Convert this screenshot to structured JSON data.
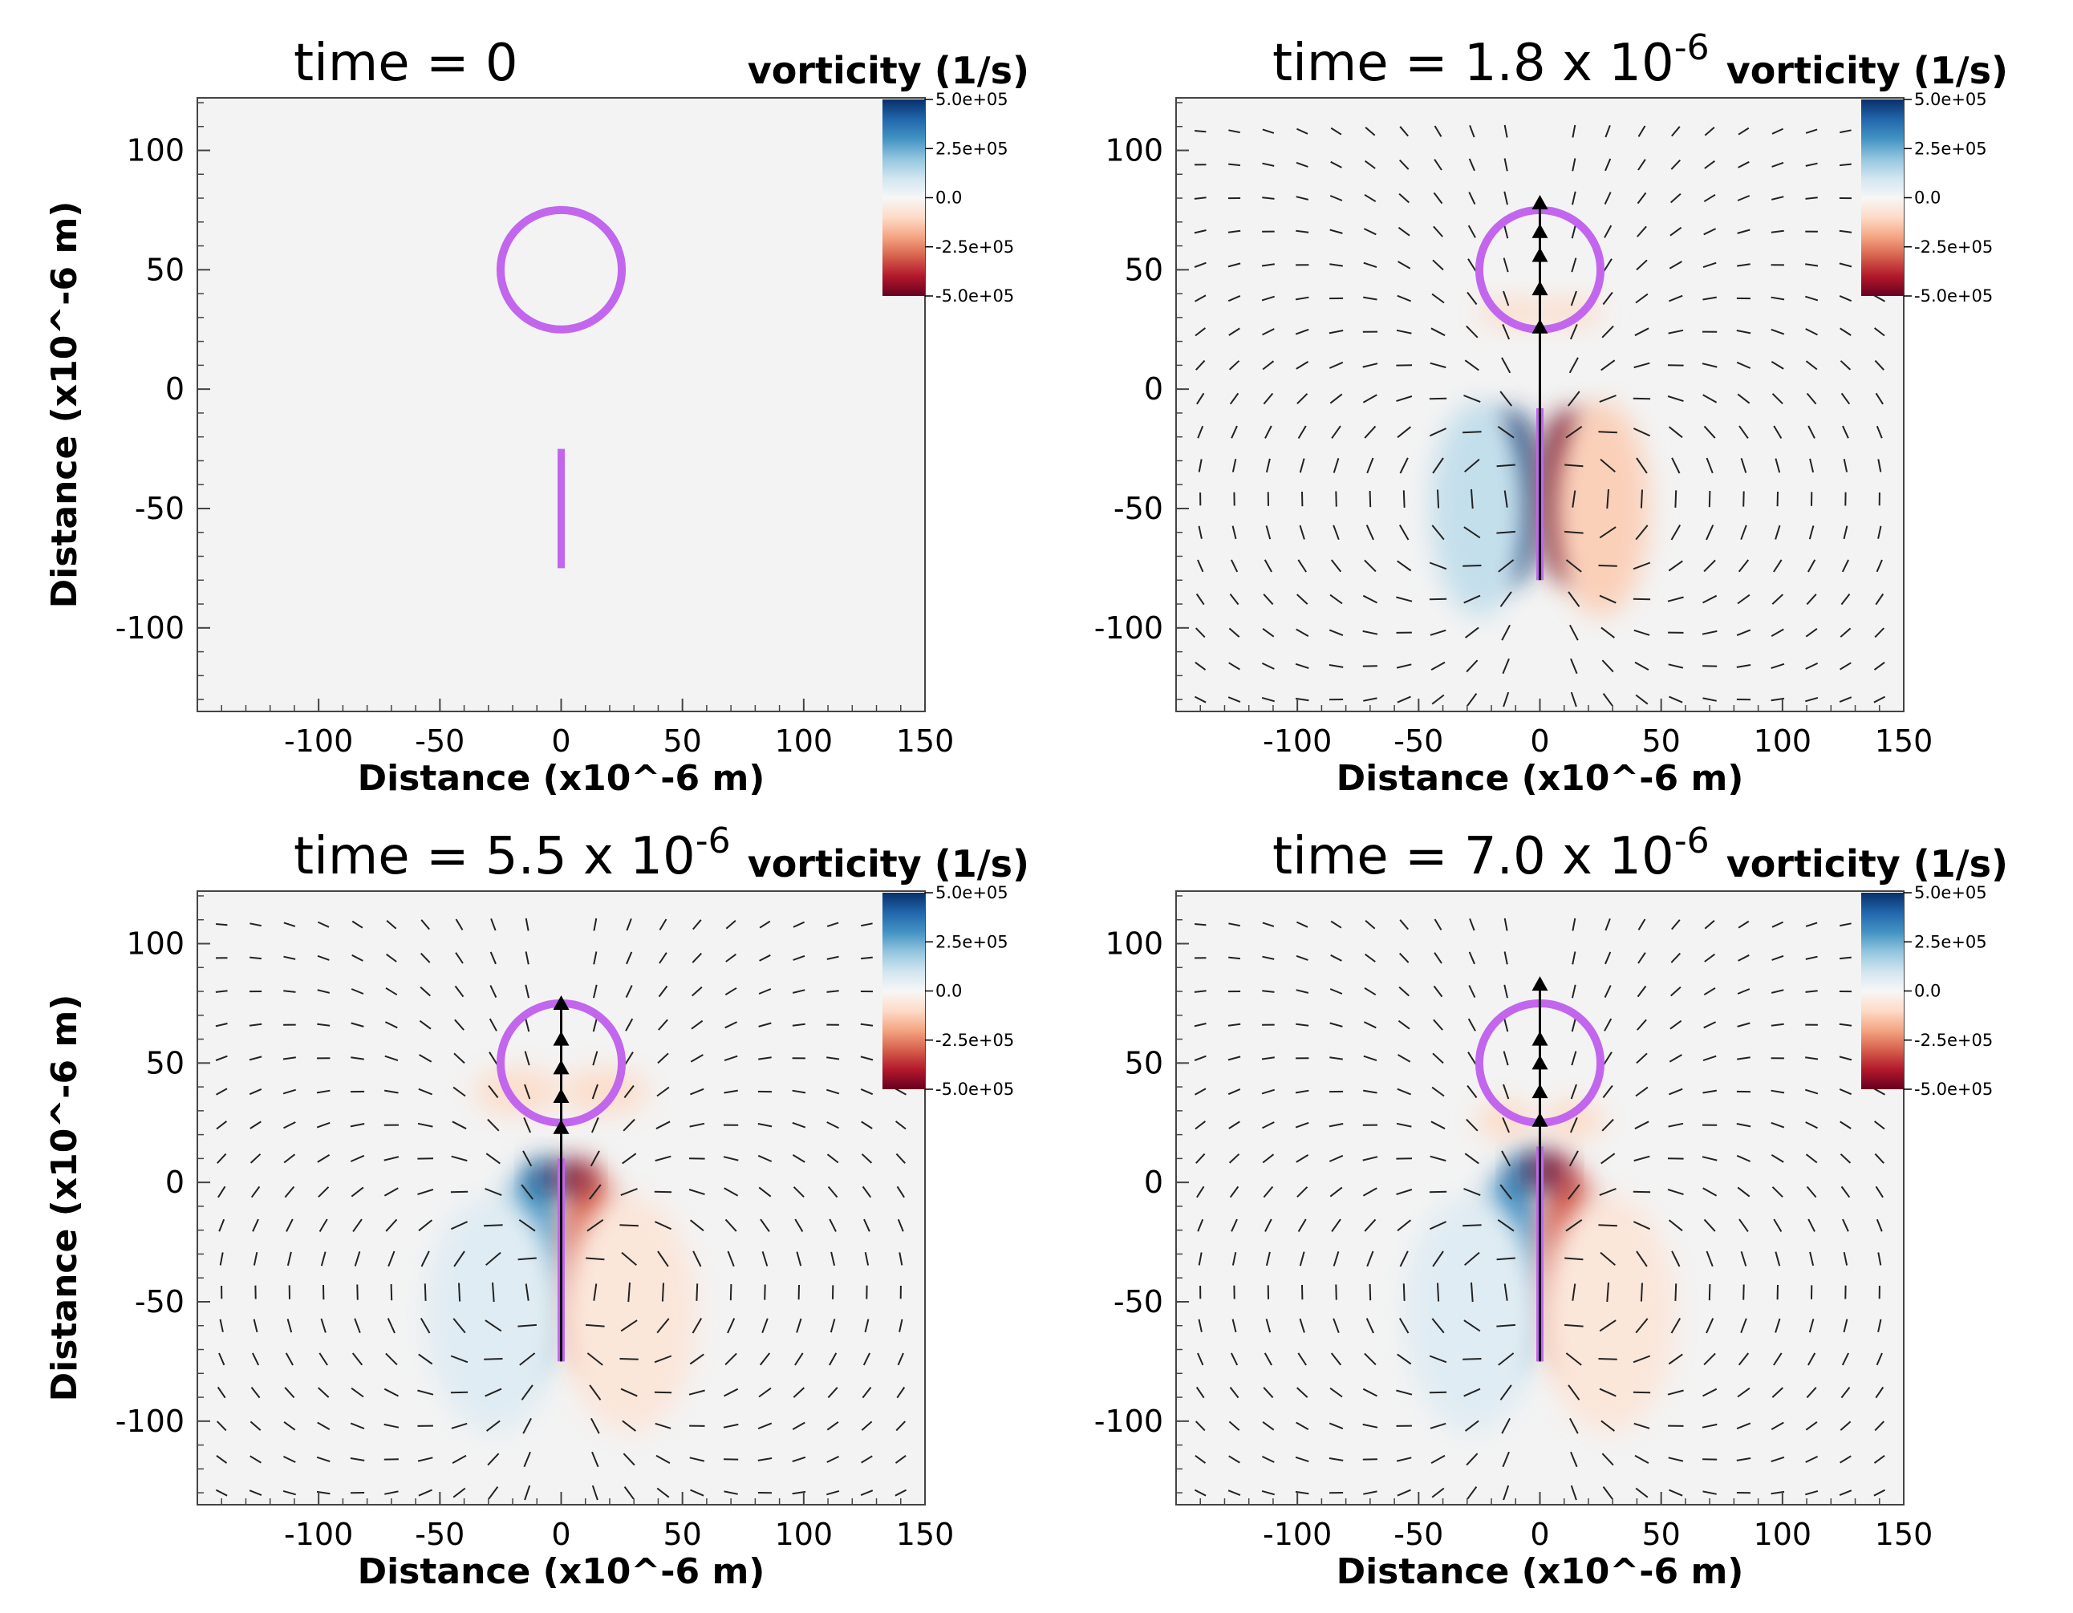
{
  "figure": {
    "colorbar_stops": [
      "#08306b",
      "#2166ac",
      "#4393c3",
      "#92c5de",
      "#d1e5f0",
      "#f7f7f7",
      "#fddbc7",
      "#f4a582",
      "#d6604d",
      "#b2182b",
      "#67001f"
    ],
    "bubble_color": "#c266ee",
    "background_color": "#f3f3f3"
  },
  "chart_data": [
    {
      "type": "heatmap",
      "title": "time = 0",
      "title_exponent": "",
      "colorbar_title": "vorticity (1/s)",
      "colorbar_ticks": [
        "5.0e+05",
        "2.5e+05",
        "0.0",
        "-2.5e+05",
        "-5.0e+05"
      ],
      "colorbar_range": [
        -500000,
        500000
      ],
      "xlabel": "Distance (x10^-6 m)",
      "ylabel": "Distance (x10^-6 m)",
      "xlim": [
        -150,
        150
      ],
      "ylim": [
        -135,
        122
      ],
      "x_ticks": [
        -100,
        -50,
        0,
        50,
        100,
        150
      ],
      "y_ticks": [
        100,
        50,
        0,
        -50,
        -100
      ],
      "x_tick_labels": [
        "-100",
        "-50",
        "0",
        "50",
        "100",
        "150"
      ],
      "y_tick_labels": [
        "100",
        "50",
        "0",
        "-50",
        "-100"
      ],
      "bubble": {
        "center": [
          0,
          50
        ],
        "radius": 25
      },
      "needle": {
        "x": 0,
        "y_top": -25,
        "y_bottom": -75
      },
      "vorticity_lobes": [],
      "velocity_field": false,
      "central_arrow": null
    },
    {
      "type": "heatmap",
      "title": "time = 1.8 x 10",
      "title_exponent": "-6",
      "colorbar_title": "vorticity (1/s)",
      "colorbar_ticks": [
        "5.0e+05",
        "2.5e+05",
        "0.0",
        "-2.5e+05",
        "-5.0e+05"
      ],
      "colorbar_range": [
        -500000,
        500000
      ],
      "xlabel": "Distance (x10^-6 m)",
      "ylabel": "Distance (x10^-6 m)",
      "xlim": [
        -150,
        150
      ],
      "ylim": [
        -135,
        122
      ],
      "x_ticks": [
        -100,
        -50,
        0,
        50,
        100,
        150
      ],
      "y_ticks": [
        100,
        50,
        0,
        -50,
        -100
      ],
      "x_tick_labels": [
        "-100",
        "-50",
        "0",
        "50",
        "100",
        "150"
      ],
      "y_tick_labels": [
        "100",
        "50",
        "0",
        "-50",
        "-100"
      ],
      "bubble": {
        "center": [
          0,
          50
        ],
        "radius": 25
      },
      "needle": {
        "x": 0,
        "y_top": -8,
        "y_bottom": -80
      },
      "vorticity_lobes": [
        {
          "cx": -12,
          "cy": -45,
          "rx": 12,
          "ry": 36,
          "value": 500000
        },
        {
          "cx": 12,
          "cy": -45,
          "rx": 12,
          "ry": 36,
          "value": -500000
        },
        {
          "cx": -25,
          "cy": -50,
          "rx": 20,
          "ry": 45,
          "value": 120000
        },
        {
          "cx": 25,
          "cy": -50,
          "rx": 20,
          "ry": 45,
          "value": -120000
        },
        {
          "cx": -12,
          "cy": 32,
          "rx": 14,
          "ry": 6,
          "value": -90000
        },
        {
          "cx": 12,
          "cy": 32,
          "rx": 14,
          "ry": 6,
          "value": -90000
        }
      ],
      "velocity_field": true,
      "central_arrow": {
        "x": 0,
        "y_from": -80,
        "y_to": 80,
        "heads_y": [
          28,
          44,
          58,
          68,
          80
        ]
      }
    },
    {
      "type": "heatmap",
      "title": "time = 5.5 x 10",
      "title_exponent": "-6",
      "colorbar_title": "vorticity (1/s)",
      "colorbar_ticks": [
        "5.0e+05",
        "2.5e+05",
        "0.0",
        "-2.5e+05",
        "-5.0e+05"
      ],
      "colorbar_range": [
        -500000,
        500000
      ],
      "xlabel": "Distance (x10^-6 m)",
      "ylabel": "Distance (x10^-6 m)",
      "xlim": [
        -150,
        150
      ],
      "ylim": [
        -135,
        122
      ],
      "x_ticks": [
        -100,
        -50,
        0,
        50,
        100,
        150
      ],
      "y_ticks": [
        100,
        50,
        0,
        -50,
        -100
      ],
      "x_tick_labels": [
        "-100",
        "-50",
        "0",
        "50",
        "100",
        "150"
      ],
      "y_tick_labels": [
        "100",
        "50",
        "0",
        "-50",
        "-100"
      ],
      "bubble": {
        "center": [
          0,
          50
        ],
        "radius": 25
      },
      "needle": {
        "x": 0,
        "y_top": 10,
        "y_bottom": -75
      },
      "vorticity_lobes": [
        {
          "cx": -12,
          "cy": -35,
          "rx": 12,
          "ry": 42,
          "value": 300000
        },
        {
          "cx": 12,
          "cy": -35,
          "rx": 12,
          "ry": 42,
          "value": -300000
        },
        {
          "cx": -6,
          "cy": 2,
          "rx": 6,
          "ry": 8,
          "value": 480000
        },
        {
          "cx": 6,
          "cy": 2,
          "rx": 6,
          "ry": 8,
          "value": -480000
        },
        {
          "cx": -20,
          "cy": -60,
          "rx": 14,
          "ry": 24,
          "value": 180000
        },
        {
          "cx": 22,
          "cy": -60,
          "rx": 14,
          "ry": 24,
          "value": -180000
        },
        {
          "cx": -28,
          "cy": -55,
          "rx": 28,
          "ry": 50,
          "value": 60000
        },
        {
          "cx": 28,
          "cy": -55,
          "rx": 28,
          "ry": 50,
          "value": -60000
        },
        {
          "cx": -18,
          "cy": 38,
          "rx": 18,
          "ry": 10,
          "value": -90000
        },
        {
          "cx": 18,
          "cy": 38,
          "rx": 18,
          "ry": 10,
          "value": -90000
        }
      ],
      "velocity_field": true,
      "central_arrow": {
        "x": 0,
        "y_from": -75,
        "y_to": 77,
        "heads_y": [
          25,
          38,
          50,
          62,
          77
        ]
      }
    },
    {
      "type": "heatmap",
      "title": "time = 7.0 x 10",
      "title_exponent": "-6",
      "colorbar_title": "vorticity (1/s)",
      "colorbar_ticks": [
        "5.0e+05",
        "2.5e+05",
        "0.0",
        "-2.5e+05",
        "-5.0e+05"
      ],
      "colorbar_range": [
        -500000,
        500000
      ],
      "xlabel": "Distance (x10^-6 m)",
      "ylabel": "Distance (x10^-6 m)",
      "xlim": [
        -150,
        150
      ],
      "ylim": [
        -135,
        122
      ],
      "x_ticks": [
        -100,
        -50,
        0,
        50,
        100,
        150
      ],
      "y_ticks": [
        100,
        50,
        0,
        -50,
        -100
      ],
      "x_tick_labels": [
        "-100",
        "-50",
        "0",
        "50",
        "100",
        "150"
      ],
      "y_tick_labels": [
        "100",
        "50",
        "0",
        "-50",
        "-100"
      ],
      "bubble": {
        "center": [
          0,
          50
        ],
        "radius": 25
      },
      "needle": {
        "x": 0,
        "y_top": 15,
        "y_bottom": -75
      },
      "vorticity_lobes": [
        {
          "cx": -12,
          "cy": -35,
          "rx": 12,
          "ry": 42,
          "value": 320000
        },
        {
          "cx": 12,
          "cy": -35,
          "rx": 12,
          "ry": 42,
          "value": -320000
        },
        {
          "cx": -5,
          "cy": 5,
          "rx": 6,
          "ry": 9,
          "value": 480000
        },
        {
          "cx": 5,
          "cy": 5,
          "rx": 6,
          "ry": 9,
          "value": -480000
        },
        {
          "cx": -22,
          "cy": -62,
          "rx": 14,
          "ry": 22,
          "value": 180000
        },
        {
          "cx": 22,
          "cy": -62,
          "rx": 14,
          "ry": 22,
          "value": -180000
        },
        {
          "cx": -28,
          "cy": -55,
          "rx": 28,
          "ry": 50,
          "value": 60000
        },
        {
          "cx": 28,
          "cy": -55,
          "rx": 28,
          "ry": 50,
          "value": -60000
        },
        {
          "cx": -14,
          "cy": 26,
          "rx": 12,
          "ry": 8,
          "value": -100000
        },
        {
          "cx": 14,
          "cy": 26,
          "rx": 12,
          "ry": 8,
          "value": -100000
        }
      ],
      "velocity_field": true,
      "central_arrow": {
        "x": 0,
        "y_from": -75,
        "y_to": 85,
        "heads_y": [
          28,
          40,
          52,
          62,
          85
        ]
      }
    }
  ]
}
